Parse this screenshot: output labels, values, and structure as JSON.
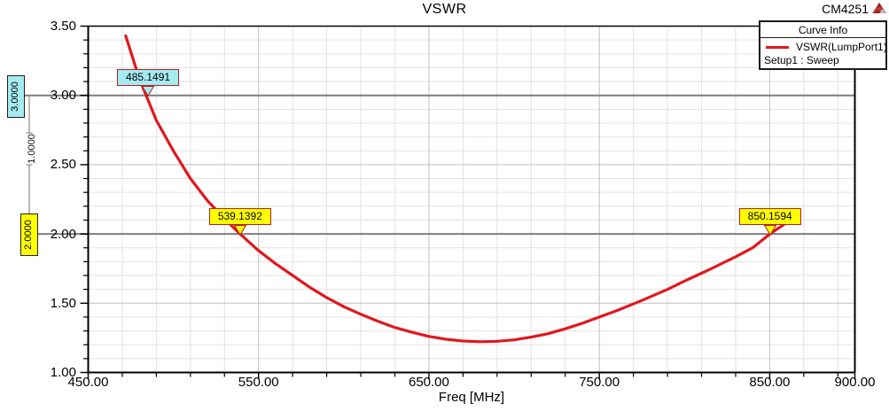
{
  "header": {
    "title": "VSWR",
    "watermark": "CM4251",
    "logo": "ansoft-triangle-logo"
  },
  "legend": {
    "title": "Curve Info",
    "series_label": "VSWR(LumpPort1)",
    "setup_label": "Setup1 : Sweep"
  },
  "axes": {
    "x": {
      "label": "Freq [MHz]",
      "tick_values": [
        450,
        550,
        650,
        750,
        850,
        900
      ],
      "tick_labels": [
        "450.00",
        "550.00",
        "650.00",
        "750.00",
        "850.00",
        "900.00"
      ],
      "minor_step": 20,
      "major_step": 100
    },
    "y": {
      "tick_values": [
        3.5,
        3.0,
        2.5,
        2.0,
        1.5,
        1.0
      ],
      "tick_labels": [
        "3.50",
        "3.00",
        "2.50",
        "2.00",
        "1.50",
        "1.00"
      ],
      "minor_step": 0.1,
      "major_step": 0.5
    }
  },
  "markers": {
    "h_lines": [
      {
        "value": 3.0,
        "label": "3.0000",
        "fill": "#a5ebf2"
      },
      {
        "value": 2.0,
        "label": "2.0000",
        "fill": "#ffff00"
      }
    ],
    "delta_label": "1.0000",
    "x_markers": [
      {
        "freq": 485.1491,
        "label": "485.1491",
        "at_value": 3.0,
        "fill": "#a5ebf2"
      },
      {
        "freq": 539.1392,
        "label": "539.1392",
        "at_value": 2.0,
        "fill": "#ffff00"
      },
      {
        "freq": 850.1594,
        "label": "850.1594",
        "at_value": 2.0,
        "fill": "#ffff00"
      }
    ]
  },
  "colors": {
    "curve": "#e0181f",
    "grid_minor": "#e3e3e3",
    "grid_major": "#bfbfbf",
    "marker_line": "#7d7d7d",
    "axis": "#000000",
    "badge_border": "#b22222"
  },
  "chart_data": {
    "type": "line",
    "title": "VSWR",
    "xlabel": "Freq [MHz]",
    "ylabel": "",
    "xlim": [
      450,
      900
    ],
    "ylim": [
      1.0,
      3.5
    ],
    "grid": true,
    "legend_position": "top-right",
    "series": [
      {
        "name": "VSWR(LumpPort1)",
        "color": "#e0181f",
        "x": [
          472,
          480,
          490,
          500,
          510,
          520,
          530,
          539.14,
          550,
          560,
          570,
          580,
          590,
          600,
          610,
          620,
          630,
          640,
          650,
          660,
          670,
          680,
          690,
          700,
          710,
          720,
          730,
          740,
          750,
          760,
          775,
          790,
          800,
          815,
          830,
          840,
          850.16,
          861
        ],
        "y": [
          3.43,
          3.12,
          2.82,
          2.6,
          2.4,
          2.24,
          2.11,
          2.0,
          1.88,
          1.785,
          1.7,
          1.615,
          1.54,
          1.475,
          1.42,
          1.37,
          1.325,
          1.29,
          1.26,
          1.24,
          1.227,
          1.222,
          1.225,
          1.235,
          1.255,
          1.28,
          1.315,
          1.355,
          1.4,
          1.445,
          1.52,
          1.6,
          1.66,
          1.745,
          1.835,
          1.9,
          2.0,
          2.09
        ]
      }
    ],
    "annotations": {
      "horizontal_lines": [
        3.0,
        2.0
      ],
      "delta_between_lines": 1.0,
      "x_intercepts_marked": [
        485.1491,
        539.1392,
        850.1594
      ]
    }
  }
}
